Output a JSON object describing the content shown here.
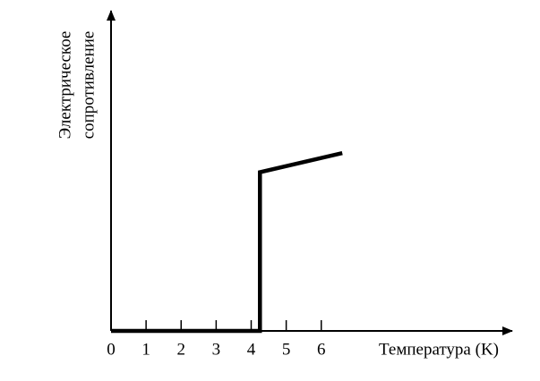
{
  "chart_data": {
    "type": "line",
    "xlabel": "Температура (K)",
    "ylabel": [
      "Электрическое",
      "сопротивление"
    ],
    "x": [
      0,
      4.25,
      4.25,
      6.6
    ],
    "series": [
      {
        "color": "#000000",
        "values": [
          0,
          0,
          5,
          5.6
        ]
      }
    ],
    "xlim": [
      0,
      11.4
    ],
    "xticks": [
      0,
      1,
      2,
      3,
      4,
      5,
      6
    ],
    "ylim": [
      0,
      10
    ]
  }
}
